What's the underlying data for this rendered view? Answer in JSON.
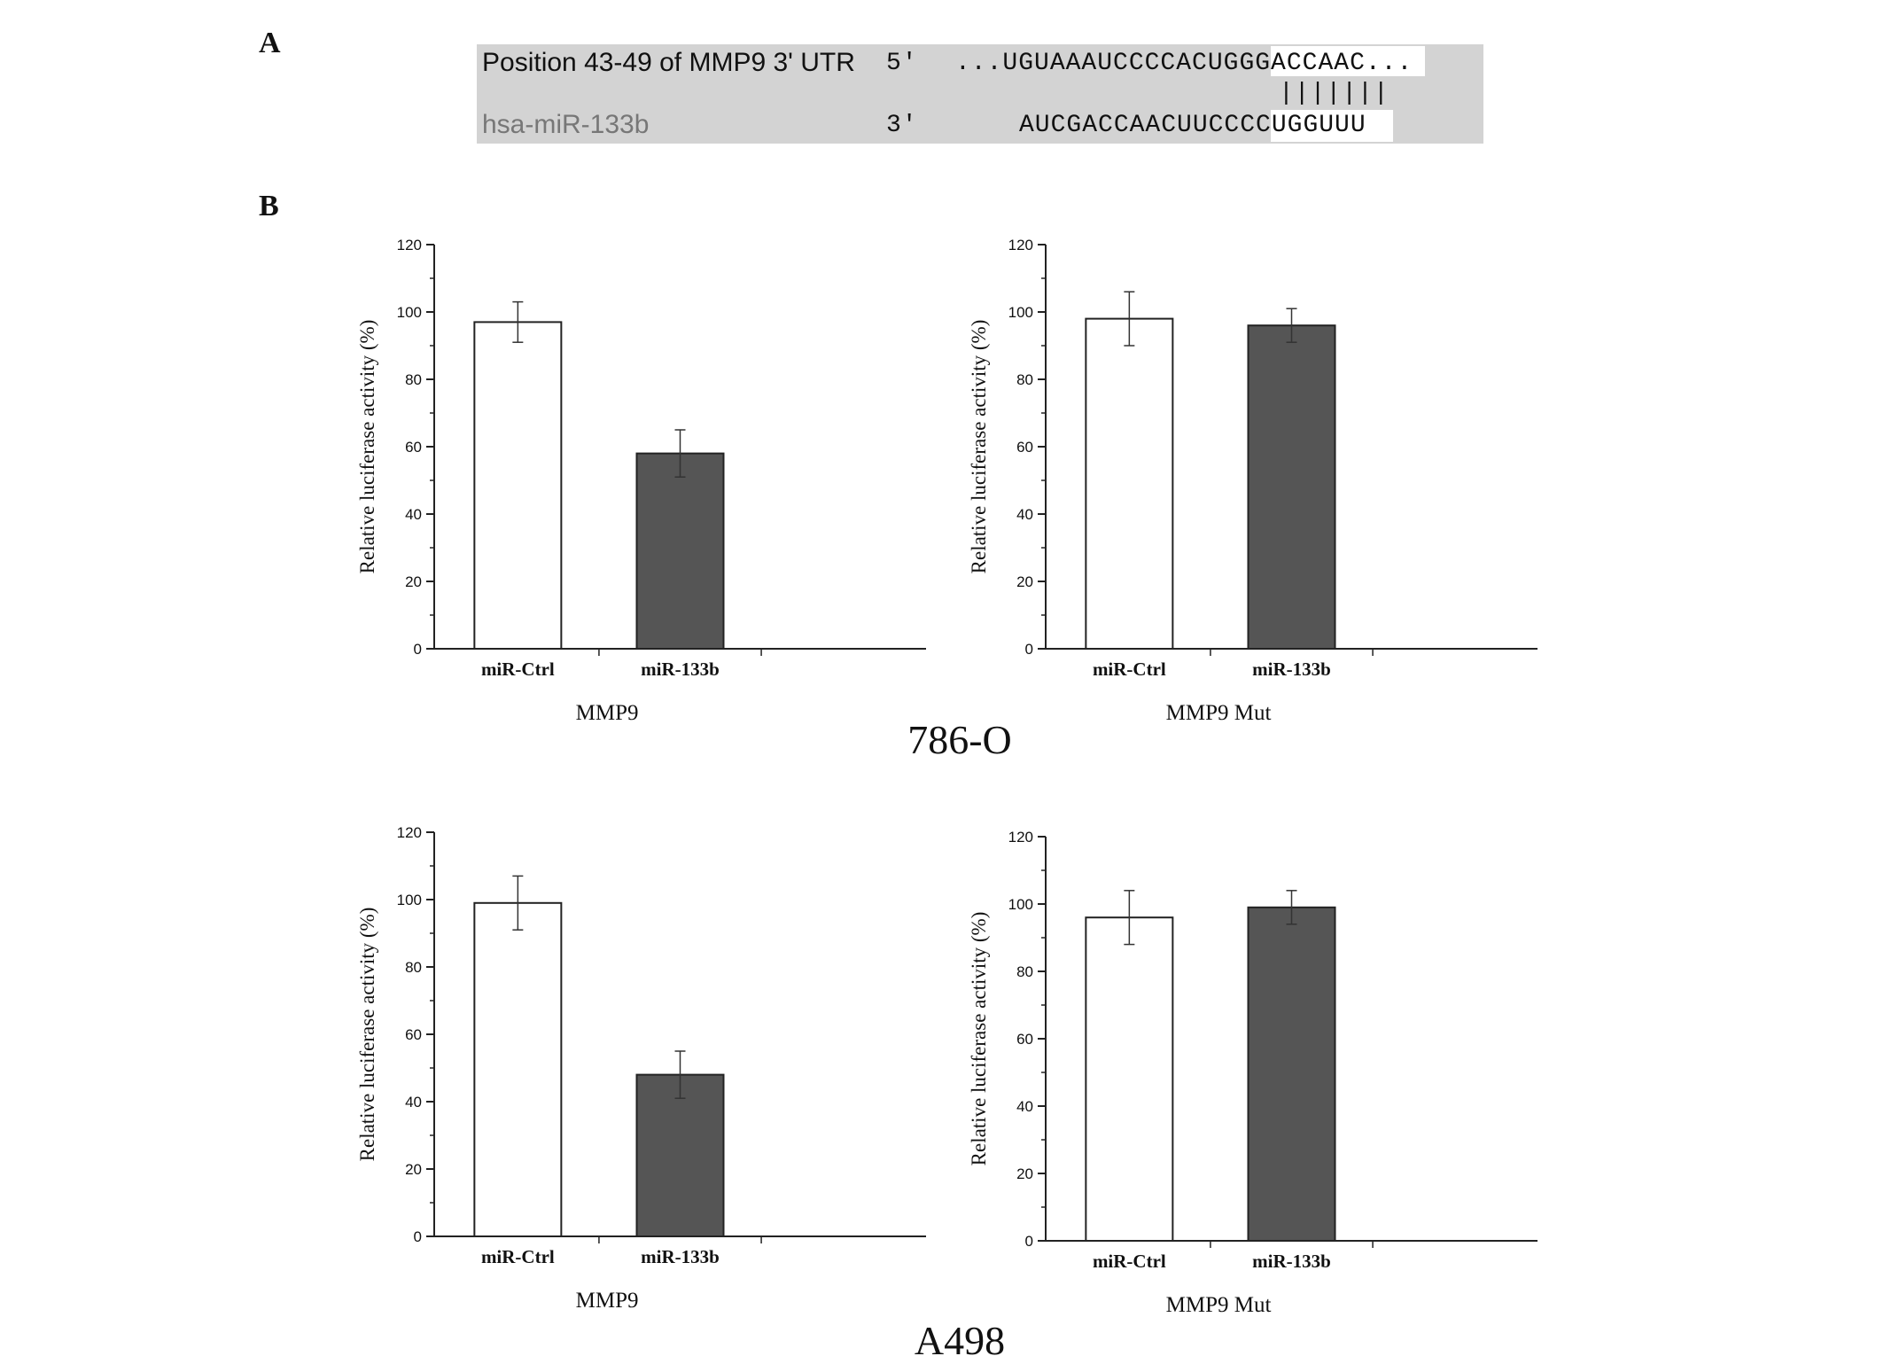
{
  "panel_labels": {
    "a": "A",
    "b": "B"
  },
  "panel_a": {
    "top_label": "Position 43-49 of MMP9 3' UTR",
    "top_end": "5'",
    "top_seq": "...UGUAAAUCCCCACUGGGACCAAC...",
    "pairing": "|||||||",
    "bottom_label": "hsa-miR-133b",
    "bottom_end": "3'",
    "bottom_seq": "AUCGACCAACUUCCCCUGGUUU"
  },
  "cell_lines": [
    "786-O",
    "A498"
  ],
  "colors": {
    "control_bar": "#ffffff",
    "treatment_bar": "#555555",
    "box": "#d3d3d3",
    "axis": "#222222"
  },
  "chart_data": [
    {
      "type": "bar",
      "cell_line": "786-O",
      "categories": [
        "miR-Ctrl",
        "miR-133b"
      ],
      "values": [
        97,
        58
      ],
      "errors": [
        6,
        7
      ],
      "xlabel": "MMP9",
      "ylabel": "Relative luciferase activity (%)",
      "ylim": [
        0,
        120
      ],
      "yticks": [
        0,
        20,
        40,
        60,
        80,
        100,
        120
      ]
    },
    {
      "type": "bar",
      "cell_line": "786-O",
      "categories": [
        "miR-Ctrl",
        "miR-133b"
      ],
      "values": [
        98,
        96
      ],
      "errors": [
        8,
        5
      ],
      "xlabel": "MMP9 Mut",
      "ylabel": "Relative luciferase activity (%)",
      "ylim": [
        0,
        120
      ],
      "yticks": [
        0,
        20,
        40,
        60,
        80,
        100,
        120
      ]
    },
    {
      "type": "bar",
      "cell_line": "A498",
      "categories": [
        "miR-Ctrl",
        "miR-133b"
      ],
      "values": [
        99,
        48
      ],
      "errors": [
        8,
        7
      ],
      "xlabel": "MMP9",
      "ylabel": "Relative luciferase activity (%)",
      "ylim": [
        0,
        120
      ],
      "yticks": [
        0,
        20,
        40,
        60,
        80,
        100,
        120
      ]
    },
    {
      "type": "bar",
      "cell_line": "A498",
      "categories": [
        "miR-Ctrl",
        "miR-133b"
      ],
      "values": [
        96,
        99
      ],
      "errors": [
        8,
        5
      ],
      "xlabel": "MMP9 Mut",
      "ylabel": "Relative luciferase activity (%)",
      "ylim": [
        0,
        120
      ],
      "yticks": [
        0,
        20,
        40,
        60,
        80,
        100,
        120
      ]
    }
  ]
}
